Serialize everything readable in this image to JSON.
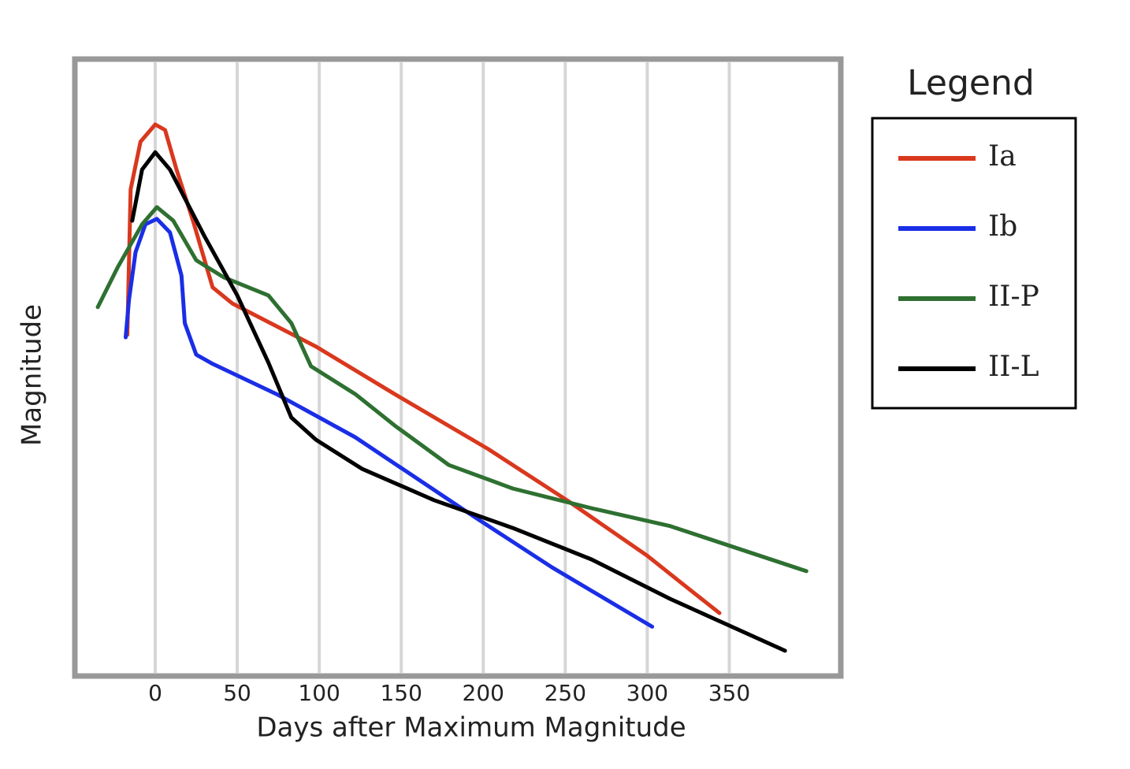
{
  "chart_data": {
    "type": "line",
    "x_label": "Days after Maximum Magnitude",
    "y_label": "Magnitude",
    "legend_title": "Legend",
    "legend": "right",
    "grid": true,
    "xlim": [
      -49,
      418
    ],
    "ylim": [
      0,
      100
    ],
    "xticks": [
      0,
      50,
      100,
      150,
      200,
      250,
      300,
      350
    ],
    "series": [
      {
        "name": "Ia",
        "color": "#d9381e",
        "x": [
          -17,
          -15,
          -9,
          0,
          6,
          13,
          23,
          35,
          47,
          98,
          146,
          203,
          251,
          300,
          324,
          344
        ],
        "values": [
          55.3,
          78.9,
          86.6,
          89.4,
          88.5,
          82.1,
          73.8,
          63,
          60.4,
          53.4,
          45.7,
          36.8,
          28.5,
          19.5,
          14.4,
          10.2
        ]
      },
      {
        "name": "Ib",
        "color": "#1a2ee6",
        "x": [
          -18,
          -16,
          -12,
          -6,
          1,
          9,
          16,
          18,
          25,
          35,
          74,
          122,
          194,
          242,
          303
        ],
        "values": [
          54.9,
          61,
          68.7,
          73.2,
          74.1,
          71.9,
          64.9,
          57.2,
          52.1,
          50.6,
          45.7,
          38.7,
          25.9,
          17.6,
          8
        ]
      },
      {
        "name": "II-P",
        "color": "#2e7031",
        "x": [
          -35,
          -23,
          -8,
          1,
          11,
          25,
          42,
          69,
          83,
          95,
          122,
          146,
          179,
          218,
          266,
          314,
          397
        ],
        "values": [
          59.8,
          66.2,
          73.2,
          76,
          73.8,
          67.4,
          64.6,
          61.7,
          57.2,
          50.2,
          45.7,
          40.6,
          34.2,
          30.4,
          27.2,
          24.3,
          17
        ]
      },
      {
        "name": "II-L",
        "color": "#000000",
        "x": [
          -14,
          -8,
          0,
          9,
          30,
          50,
          69,
          83,
          98,
          126,
          170,
          218,
          266,
          314,
          384
        ],
        "values": [
          73.8,
          82.1,
          84.9,
          82.1,
          71.3,
          61.7,
          50.8,
          41.9,
          38.3,
          33.6,
          28.5,
          24,
          18.9,
          12.5,
          4.1
        ]
      }
    ]
  }
}
